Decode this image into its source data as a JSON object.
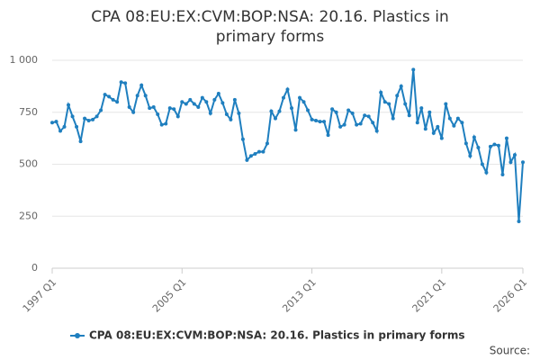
{
  "chart_data": {
    "type": "line",
    "title": "CPA 08:EU:EX:CVM:BOP:NSA: 20.16. Plastics in primary forms",
    "categories": [
      "1997 Q1",
      null,
      null,
      null,
      null,
      null,
      null,
      null,
      null,
      null,
      null,
      null,
      null,
      null,
      null,
      null,
      null,
      null,
      null,
      null,
      null,
      null,
      null,
      null,
      null,
      null,
      null,
      null,
      null,
      null,
      null,
      null,
      "2005 Q1",
      null,
      null,
      null,
      null,
      null,
      null,
      null,
      null,
      null,
      null,
      null,
      null,
      null,
      null,
      null,
      null,
      null,
      null,
      null,
      null,
      null,
      null,
      null,
      null,
      null,
      null,
      null,
      null,
      null,
      null,
      null,
      "2013 Q1",
      null,
      null,
      null,
      null,
      null,
      null,
      null,
      null,
      null,
      null,
      null,
      null,
      null,
      null,
      null,
      null,
      null,
      null,
      null,
      null,
      null,
      null,
      null,
      null,
      null,
      null,
      null,
      null,
      null,
      null,
      null,
      "2021 Q1",
      null,
      null,
      null,
      null,
      null,
      null,
      null,
      null,
      null,
      null,
      null,
      null,
      null,
      null,
      null,
      null,
      null,
      null,
      null,
      "2026 Q1"
    ],
    "series": [
      {
        "name": "CPA 08:EU:EX:CVM:BOP:NSA: 20.16. Plastics in primary forms",
        "color": "#1f7fbf",
        "values": [
          700,
          705,
          660,
          680,
          785,
          730,
          680,
          610,
          720,
          710,
          715,
          730,
          760,
          835,
          825,
          810,
          800,
          895,
          890,
          775,
          750,
          830,
          880,
          830,
          770,
          775,
          740,
          690,
          695,
          770,
          765,
          730,
          800,
          790,
          810,
          790,
          775,
          820,
          800,
          745,
          810,
          840,
          795,
          740,
          715,
          810,
          745,
          620,
          520,
          540,
          550,
          560,
          560,
          600,
          755,
          720,
          755,
          820,
          860,
          770,
          665,
          820,
          800,
          760,
          715,
          710,
          705,
          705,
          640,
          765,
          750,
          680,
          690,
          760,
          745,
          690,
          695,
          735,
          730,
          700,
          660,
          845,
          800,
          790,
          720,
          830,
          875,
          790,
          735,
          955,
          700,
          770,
          670,
          750,
          650,
          680,
          625,
          790,
          720,
          685,
          720,
          700,
          600,
          540,
          630,
          580,
          500,
          460,
          585,
          595,
          590,
          450,
          625,
          510,
          545,
          225,
          510
        ]
      }
    ],
    "ylim": [
      0,
      1000
    ],
    "yticks": [
      0,
      250,
      500,
      750,
      {
        "value": 1000,
        "label": "1 000"
      }
    ],
    "grid": true,
    "source_label": "Source:"
  }
}
